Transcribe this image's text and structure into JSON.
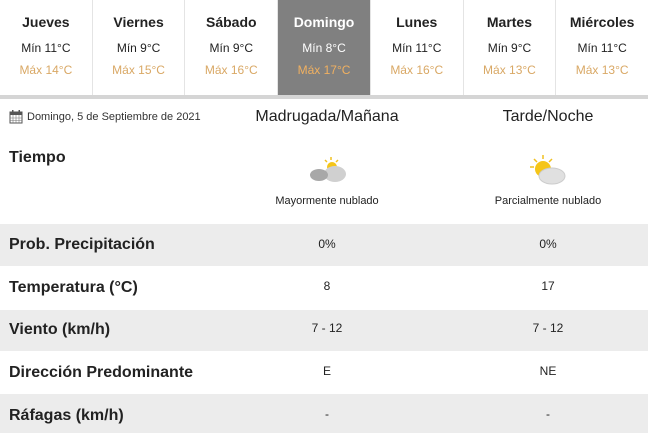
{
  "days": [
    {
      "day": "Jueves",
      "min": "Mín 11°C",
      "max": "Máx 14°C"
    },
    {
      "day": "Viernes",
      "min": "Mín 9°C",
      "max": "Máx 15°C"
    },
    {
      "day": "Sábado",
      "min": "Mín 9°C",
      "max": "Máx 16°C"
    },
    {
      "day": "Domingo",
      "min": "Mín 8°C",
      "max": "Máx 17°C",
      "active": true
    },
    {
      "day": "Lunes",
      "min": "Mín 11°C",
      "max": "Máx 16°C"
    },
    {
      "day": "Martes",
      "min": "Mín 9°C",
      "max": "Máx 13°C"
    },
    {
      "day": "Miércoles",
      "min": "Mín 11°C",
      "max": "Máx 13°C"
    }
  ],
  "date": "Domingo, 5 de Septiembre de 2021",
  "columns": [
    "Madrugada/Mañana",
    "Tarde/Noche"
  ],
  "tiempo": {
    "label": "Tiempo",
    "values": [
      {
        "icon": "mostly-cloudy-icon",
        "text": "Mayormente nublado"
      },
      {
        "icon": "partly-cloudy-icon",
        "text": "Parcialmente nublado"
      }
    ]
  },
  "rows": [
    {
      "label": "Prob. Precipitación",
      "values": [
        "0%",
        "0%"
      ]
    },
    {
      "label": "Temperatura (°C)",
      "values": [
        "8",
        "17"
      ]
    },
    {
      "label": "Viento (km/h)",
      "values": [
        "7 - 12",
        "7 - 12"
      ]
    },
    {
      "label": "Dirección Predominante",
      "values": [
        "E",
        "NE"
      ]
    },
    {
      "label": "Ráfagas (km/h)",
      "values": [
        "-",
        "-"
      ]
    }
  ],
  "colors": {
    "active_tab": "#808080",
    "max_temp": "#d9a865",
    "row_band": "#ececec"
  }
}
